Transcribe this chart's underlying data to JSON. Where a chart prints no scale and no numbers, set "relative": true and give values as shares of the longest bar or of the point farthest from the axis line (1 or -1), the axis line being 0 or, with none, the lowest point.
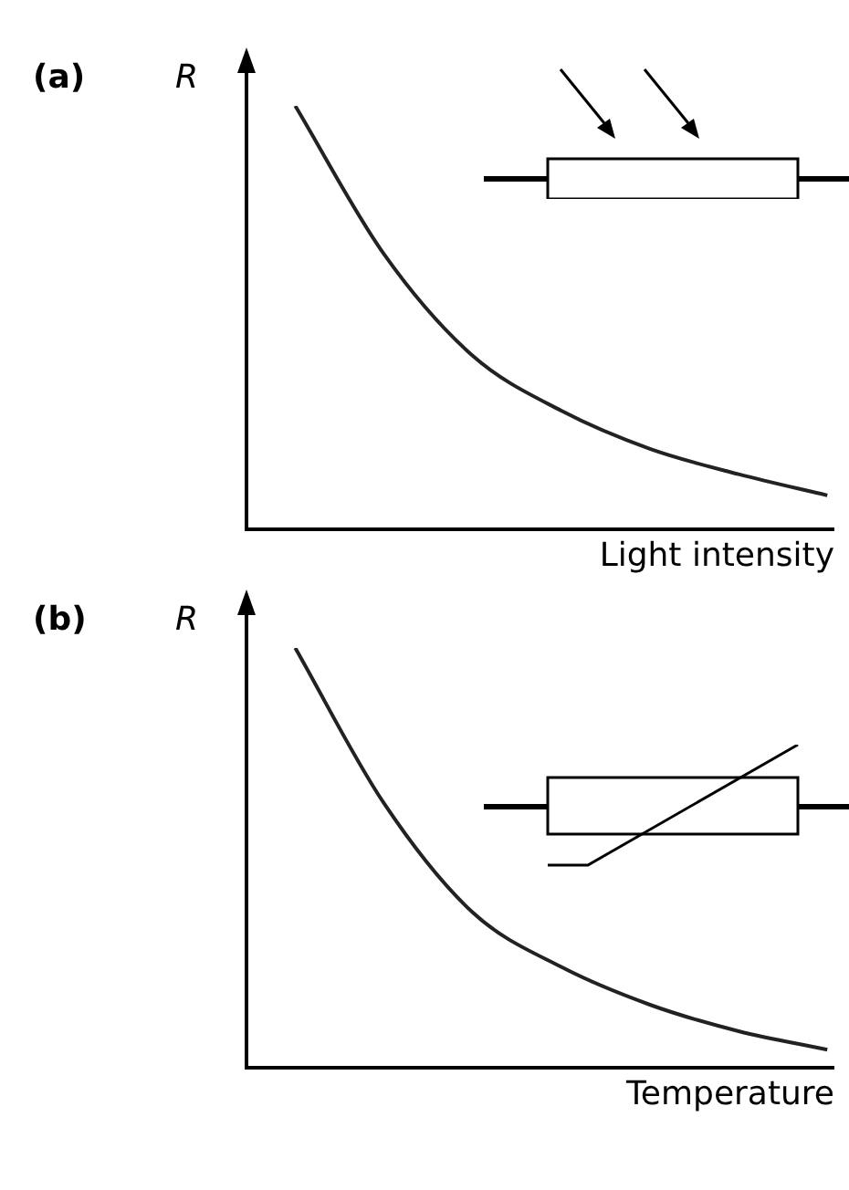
{
  "chart_data": [
    {
      "type": "line",
      "title": "(a)",
      "ylabel": "R",
      "xlabel": "Light intensity",
      "relative": true,
      "categories": [
        null,
        null,
        null,
        null,
        null,
        null,
        null
      ],
      "grid": false,
      "legend": false,
      "marker": "none",
      "series": [
        {
          "color": "#222222",
          "values": [
            1,
            0.65,
            0.41,
            0.28,
            0.19,
            0.13,
            0.08
          ]
        }
      ]
    },
    {
      "type": "line",
      "title": "(b)",
      "ylabel": "R",
      "xlabel": "Temperature",
      "relative": true,
      "categories": [
        null,
        null,
        null,
        null,
        null,
        null,
        null
      ],
      "grid": false,
      "legend": false,
      "marker": "none",
      "series": [
        {
          "color": "#222222",
          "values": [
            1,
            0.63,
            0.37,
            0.24,
            0.15,
            0.087,
            0.043
          ]
        }
      ]
    }
  ]
}
